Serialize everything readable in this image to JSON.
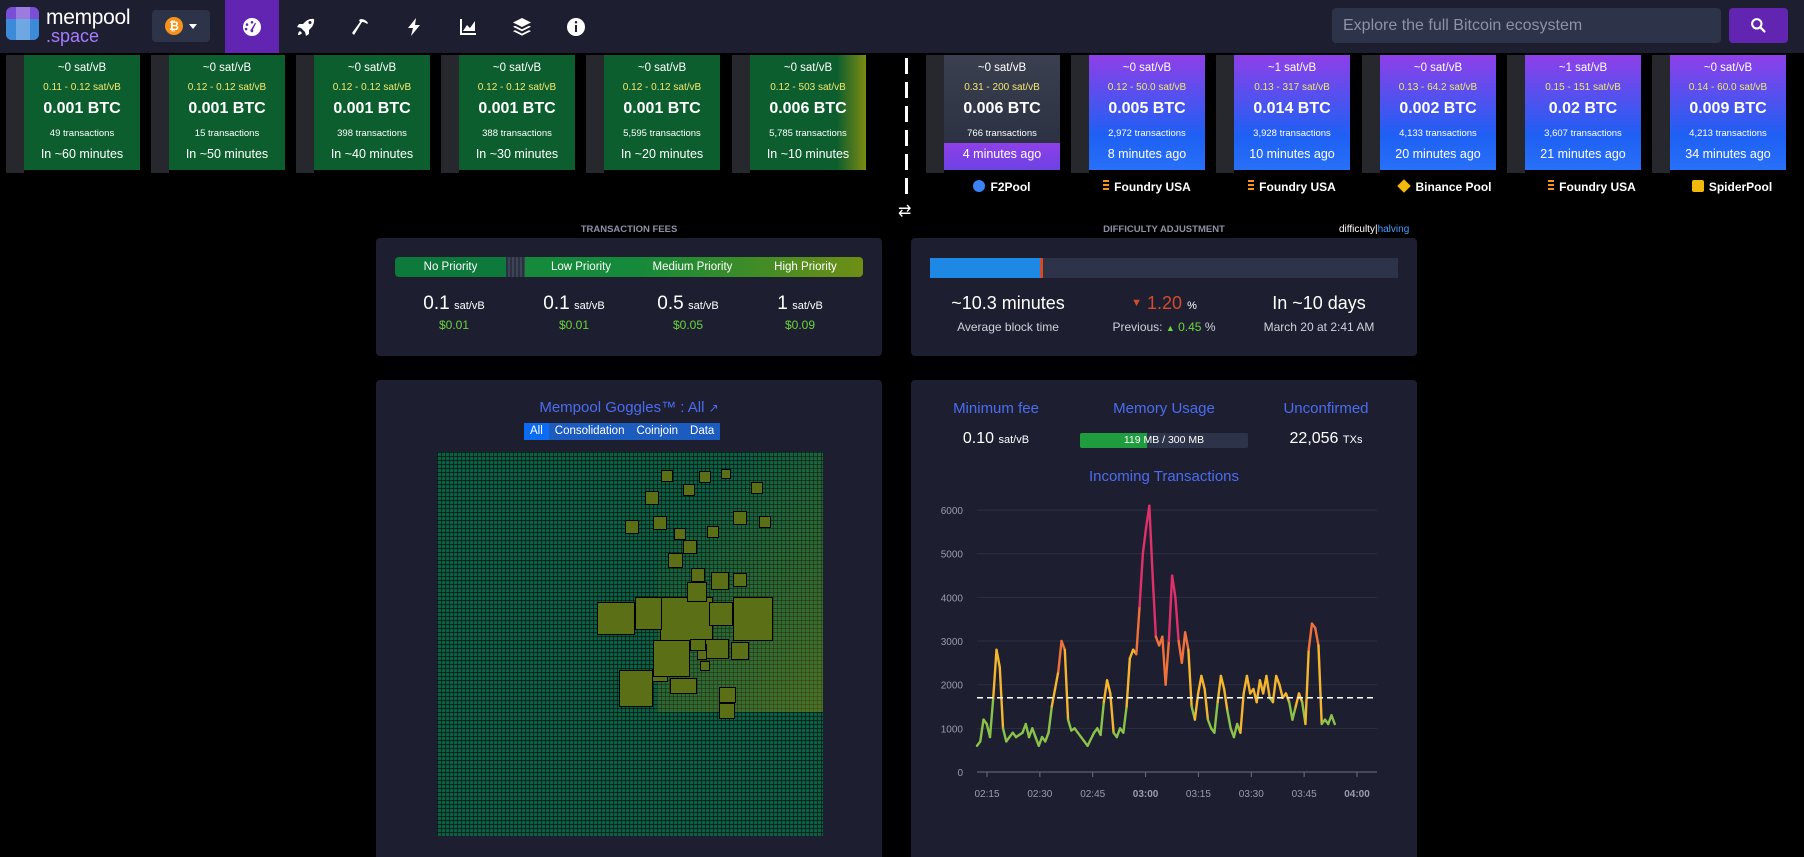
{
  "nav": {
    "logo_main": "mempool",
    "logo_sub": ".space",
    "network_symbol": "₿",
    "search_placeholder": "Explore the full Bitcoin ecosystem",
    "items": [
      "dashboard-icon",
      "rocket-icon",
      "mining-icon",
      "lightning-icon",
      "graphs-icon",
      "docs-icon",
      "about-icon"
    ]
  },
  "pending_blocks": [
    {
      "fee": "~0 sat/vB",
      "range": "0.11 - 0.12 sat/vB",
      "btc": "0.001 BTC",
      "txs": "49 transactions",
      "eta": "In ~60 minutes"
    },
    {
      "fee": "~0 sat/vB",
      "range": "0.12 - 0.12 sat/vB",
      "btc": "0.001 BTC",
      "txs": "15 transactions",
      "eta": "In ~50 minutes"
    },
    {
      "fee": "~0 sat/vB",
      "range": "0.12 - 0.12 sat/vB",
      "btc": "0.001 BTC",
      "txs": "398 transactions",
      "eta": "In ~40 minutes"
    },
    {
      "fee": "~0 sat/vB",
      "range": "0.12 - 0.12 sat/vB",
      "btc": "0.001 BTC",
      "txs": "388 transactions",
      "eta": "In ~30 minutes"
    },
    {
      "fee": "~0 sat/vB",
      "range": "0.12 - 0.12 sat/vB",
      "btc": "0.001 BTC",
      "txs": "5,595 transactions",
      "eta": "In ~20 minutes"
    },
    {
      "fee": "~0 sat/vB",
      "range": "0.12 - 503 sat/vB",
      "btc": "0.006 BTC",
      "txs": "5,785 transactions",
      "eta": "In ~10 minutes"
    }
  ],
  "mined_blocks": [
    {
      "fee": "~0 sat/vB",
      "range": "0.31 - 200 sat/vB",
      "btc": "0.006 BTC",
      "txs": "766 transactions",
      "ago": "4 minutes ago",
      "pool": "F2Pool",
      "pool_color": "#3b82f6"
    },
    {
      "fee": "~0 sat/vB",
      "range": "0.12 - 50.0 sat/vB",
      "btc": "0.005 BTC",
      "txs": "2,972 transactions",
      "ago": "8 minutes ago",
      "pool": "Foundry USA",
      "pool_color": "#f7931a"
    },
    {
      "fee": "~1 sat/vB",
      "range": "0.13 - 317 sat/vB",
      "btc": "0.014 BTC",
      "txs": "3,928 transactions",
      "ago": "10 minutes ago",
      "pool": "Foundry USA",
      "pool_color": "#f7931a"
    },
    {
      "fee": "~0 sat/vB",
      "range": "0.13 - 64.2 sat/vB",
      "btc": "0.002 BTC",
      "txs": "4,133 transactions",
      "ago": "20 minutes ago",
      "pool": "Binance Pool",
      "pool_color": "#f0b90b"
    },
    {
      "fee": "~1 sat/vB",
      "range": "0.15 - 151 sat/vB",
      "btc": "0.02 BTC",
      "txs": "3,607 transactions",
      "ago": "21 minutes ago",
      "pool": "Foundry USA",
      "pool_color": "#f7931a"
    },
    {
      "fee": "~0 sat/vB",
      "range": "0.14 - 60.0 sat/vB",
      "btc": "0.009 BTC",
      "txs": "4,213 transactions",
      "ago": "34 minutes ago",
      "pool": "SpiderPool",
      "pool_color": "#f0b90b"
    }
  ],
  "fees": {
    "title": "Transaction Fees",
    "labels": [
      "No Priority",
      "Low Priority",
      "Medium Priority",
      "High Priority"
    ],
    "values": [
      "0.1",
      "0.1",
      "0.5",
      "1"
    ],
    "unit": "sat/vB",
    "usd": [
      "$0.01",
      "$0.01",
      "$0.05",
      "$0.09"
    ]
  },
  "difficulty": {
    "title": "Difficulty Adjustment",
    "progress": 0.235,
    "avg_block_time": "~10.3 minutes",
    "avg_label": "Average block time",
    "change": "1.20",
    "change_unit": "%",
    "previous_label": "Previous:",
    "previous": "0.45",
    "eta": "In ~10 days",
    "eta_date": "March 20 at 2:41 AM",
    "toggle_a": "difficulty",
    "toggle_sep": "|",
    "toggle_b": "halving"
  },
  "goggles": {
    "title": "Mempool Goggles™ : All",
    "tabs": [
      "All",
      "Consolidation",
      "Coinjoin",
      "Data"
    ]
  },
  "stats": {
    "min_fee_label": "Minimum fee",
    "min_fee": "0.10",
    "min_fee_unit": "sat/vB",
    "memory_label": "Memory Usage",
    "memory_text": "119 MB / 300 MB",
    "memory_fraction": 0.397,
    "unconfirmed_label": "Unconfirmed",
    "unconfirmed": "22,056",
    "unconfirmed_unit": "TXs"
  },
  "chart_data": {
    "type": "line",
    "title": "Incoming Transactions",
    "x_ticks": [
      "02:15",
      "02:30",
      "02:45",
      "03:00",
      "03:15",
      "03:30",
      "03:45",
      "04:00"
    ],
    "bold_ticks": [
      "03:00",
      "04:00"
    ],
    "y_ticks": [
      0,
      1000,
      2000,
      3000,
      4000,
      5000,
      6000
    ],
    "ylim": [
      0,
      6300
    ],
    "xlim": [
      0,
      123
    ],
    "threshold": 1700,
    "values": [
      600,
      700,
      1200,
      1100,
      800,
      1700,
      2800,
      2400,
      1000,
      700,
      800,
      900,
      800,
      850,
      900,
      1100,
      800,
      1000,
      800,
      600,
      800,
      700,
      900,
      1500,
      1900,
      2300,
      3000,
      2800,
      1200,
      950,
      1000,
      900,
      800,
      700,
      600,
      750,
      900,
      1000,
      850,
      1600,
      2100,
      1800,
      900,
      800,
      1000,
      900,
      1500,
      2600,
      2800,
      2700,
      3800,
      5000,
      5600,
      6100,
      4500,
      3100,
      2900,
      3100,
      2000,
      3000,
      4500,
      4000,
      3000,
      2500,
      3200,
      2800,
      1500,
      1200,
      1800,
      2200,
      1900,
      1200,
      1000,
      900,
      1600,
      2200,
      1900,
      1400,
      1000,
      800,
      1100,
      900,
      1800,
      2200,
      1800,
      1900,
      1600,
      2100,
      1800,
      2200,
      1700,
      1600,
      2200,
      2000,
      1700,
      1800,
      1600,
      1200,
      1500,
      1800,
      1600,
      1100,
      2800,
      3400,
      3300,
      2900,
      1100,
      1200,
      1100,
      1300,
      1100
    ]
  }
}
